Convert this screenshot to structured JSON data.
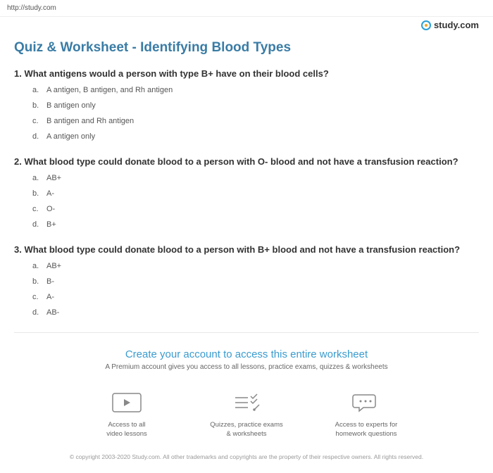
{
  "url": "http://study.com",
  "logo_text": "study.com",
  "page_title": "Quiz & Worksheet - Identifying Blood Types",
  "questions": [
    {
      "num": "1.",
      "text": "What antigens would a person with type B+ have on their blood cells?",
      "choices": [
        {
          "letter": "a.",
          "text": "A antigen, B antigen, and Rh antigen"
        },
        {
          "letter": "b.",
          "text": "B antigen only"
        },
        {
          "letter": "c.",
          "text": "B antigen and Rh antigen"
        },
        {
          "letter": "d.",
          "text": "A antigen only"
        }
      ]
    },
    {
      "num": "2.",
      "text": "What blood type could donate blood to a person with O- blood and not have a transfusion reaction?",
      "choices": [
        {
          "letter": "a.",
          "text": "AB+"
        },
        {
          "letter": "b.",
          "text": "A-"
        },
        {
          "letter": "c.",
          "text": "O-"
        },
        {
          "letter": "d.",
          "text": "B+"
        }
      ]
    },
    {
      "num": "3.",
      "text": "What blood type could donate blood to a person with B+ blood and not have a transfusion reaction?",
      "choices": [
        {
          "letter": "a.",
          "text": "AB+"
        },
        {
          "letter": "b.",
          "text": "B-"
        },
        {
          "letter": "c.",
          "text": "A-"
        },
        {
          "letter": "d.",
          "text": "AB-"
        }
      ]
    }
  ],
  "cta": {
    "title": "Create your account to access this entire worksheet",
    "sub": "A Premium account gives you access to all lessons, practice exams, quizzes & worksheets"
  },
  "benefits": [
    {
      "line1": "Access to all",
      "line2": "video lessons"
    },
    {
      "line1": "Quizzes, practice exams",
      "line2": "& worksheets"
    },
    {
      "line1": "Access to experts for",
      "line2": "homework questions"
    }
  ],
  "copyright": "© copyright 2003-2020 Study.com. All other trademarks and copyrights are the property of their respective owners. All rights reserved."
}
